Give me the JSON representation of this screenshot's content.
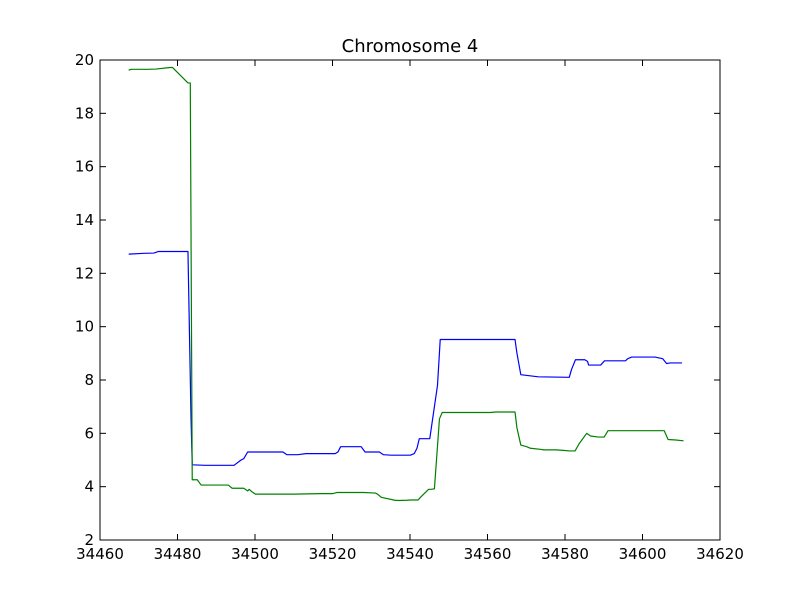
{
  "chart_data": {
    "type": "line",
    "title": "Chromosome 4",
    "xlabel": "",
    "ylabel": "",
    "xlim": [
      34460,
      34620
    ],
    "ylim": [
      2,
      20
    ],
    "xticks": [
      34460,
      34480,
      34500,
      34520,
      34540,
      34560,
      34580,
      34600,
      34620
    ],
    "yticks": [
      2,
      4,
      6,
      8,
      10,
      12,
      14,
      16,
      18,
      20
    ],
    "grid": false,
    "legend": "none",
    "series": [
      {
        "color": "#0000ff",
        "x": [
          34467.4,
          34471.4,
          34473.9,
          34475.1,
          34482.7,
          34483.5,
          34483.8,
          34487.1,
          34494.6,
          34496.4,
          34497.1,
          34498.1,
          34507.2,
          34508.2,
          34511.1,
          34513.1,
          34520.7,
          34521.4,
          34522.1,
          34523.1,
          34527.4,
          34528.4,
          34532.1,
          34533.1,
          34535.1,
          34540.1,
          34541.1,
          34541.8,
          34542.4,
          34545.1,
          34547.1,
          34547.8,
          34567.1,
          34567.6,
          34568.6,
          34573.1,
          34581.1,
          34581.7,
          34582.7,
          34585.1,
          34585.8,
          34586.1,
          34589.2,
          34590.2,
          34595.6,
          34596.2,
          34597.2,
          34602.2,
          34603.2,
          34605.2,
          34606.2,
          34607.2,
          34610.2
        ],
        "y": [
          12.72,
          12.75,
          12.76,
          12.82,
          12.82,
          6.5,
          4.82,
          4.8,
          4.8,
          5.0,
          5.05,
          5.3,
          5.3,
          5.2,
          5.2,
          5.24,
          5.24,
          5.3,
          5.5,
          5.5,
          5.5,
          5.3,
          5.3,
          5.2,
          5.18,
          5.18,
          5.24,
          5.44,
          5.8,
          5.8,
          7.8,
          9.52,
          9.52,
          9.0,
          8.2,
          8.12,
          8.1,
          8.4,
          8.76,
          8.76,
          8.7,
          8.56,
          8.56,
          8.72,
          8.72,
          8.8,
          8.86,
          8.86,
          8.86,
          8.8,
          8.62,
          8.64,
          8.64
        ]
      },
      {
        "color": "#008000",
        "x": [
          34467.4,
          34468.1,
          34472.4,
          34474.4,
          34478.1,
          34478.7,
          34482.7,
          34483.3,
          34483.8,
          34485.1,
          34486.1,
          34493.1,
          34494.1,
          34497.1,
          34498.1,
          34498.5,
          34499.1,
          34500.1,
          34510.1,
          34517.1,
          34520.1,
          34521.1,
          34527.1,
          34528.1,
          34531.1,
          34531.6,
          34532.6,
          34536.1,
          34537.1,
          34539.1,
          34540.1,
          34542.1,
          34542.7,
          34544.8,
          34545.5,
          34546.3,
          34547.6,
          34548.3,
          34560.7,
          34562.1,
          34567.1,
          34567.6,
          34568.6,
          34570.1,
          34571.1,
          34573.6,
          34574.6,
          34577.6,
          34579.6,
          34581.1,
          34582.6,
          34583.6,
          34585.6,
          34586.6,
          34588.6,
          34590.1,
          34591.1,
          34605.6,
          34606.6,
          34608.6,
          34610.6
        ],
        "y": [
          19.62,
          19.65,
          19.65,
          19.66,
          19.72,
          19.72,
          19.14,
          19.14,
          4.26,
          4.26,
          4.06,
          4.06,
          3.94,
          3.94,
          3.84,
          3.9,
          3.82,
          3.72,
          3.72,
          3.74,
          3.74,
          3.78,
          3.78,
          3.78,
          3.76,
          3.72,
          3.6,
          3.49,
          3.48,
          3.49,
          3.5,
          3.5,
          3.6,
          3.9,
          3.9,
          3.92,
          6.54,
          6.78,
          6.78,
          6.8,
          6.8,
          6.2,
          5.56,
          5.5,
          5.44,
          5.4,
          5.38,
          5.38,
          5.36,
          5.34,
          5.34,
          5.6,
          6.0,
          5.9,
          5.86,
          5.86,
          6.1,
          6.1,
          5.77,
          5.75,
          5.72
        ]
      }
    ]
  }
}
